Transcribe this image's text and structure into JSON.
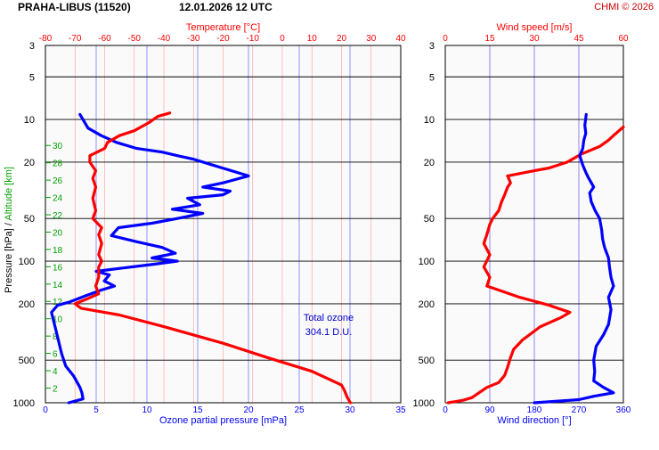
{
  "header": {
    "station_title": "PRAHA-LIBUS (11520)",
    "datetime": "12.01.2026 12 UTC",
    "credit": "CHMI © 2026"
  },
  "colors": {
    "ozone": "#0000ff",
    "temperature": "#ff0000",
    "wind_speed": "#ff0000",
    "wind_direction": "#0000ff",
    "altitude": "#00a000",
    "grid": "#000000",
    "plot_background": "#fafafa"
  },
  "annotation": {
    "line1": "Total ozone",
    "line2": "304.1 D.U."
  },
  "chart_data": [
    {
      "type": "line",
      "name": "ozone-temperature-profile",
      "title": "",
      "ylabel": "Pressure [hPa]  /  Altitude [km]",
      "y_scale": "log",
      "ylim": [
        1000,
        3
      ],
      "y_ticks": [
        3,
        5,
        10,
        20,
        50,
        100,
        200,
        500,
        1000
      ],
      "altitude_ticks": [
        "2",
        "4",
        "6",
        "8",
        "10",
        "12",
        "14",
        "16",
        "18",
        "20",
        "22",
        "24",
        "26",
        "28",
        "30"
      ],
      "x_axes": {
        "bottom": {
          "label": "Ozone partial pressure [mPa]",
          "range": [
            0,
            35
          ],
          "ticks": [
            0,
            5,
            10,
            15,
            20,
            25,
            30,
            35
          ]
        },
        "top": {
          "label": "Temperature [°C]",
          "range": [
            -80,
            40
          ],
          "ticks": [
            -80,
            -70,
            -60,
            -50,
            -40,
            -30,
            -20,
            -10,
            0,
            10,
            20,
            30,
            40
          ]
        }
      },
      "series": [
        {
          "axis": "bottom",
          "points": [
            [
              2.3,
              1000
            ],
            [
              3.7,
              940
            ],
            [
              3.6,
              850
            ],
            [
              3.4,
              780
            ],
            [
              2.8,
              650
            ],
            [
              2.0,
              550
            ],
            [
              1.6,
              450
            ],
            [
              1.0,
              300
            ],
            [
              0.6,
              230
            ],
            [
              1.2,
              205
            ],
            [
              2.3,
              195
            ],
            [
              4.0,
              175
            ],
            [
              5.5,
              160
            ],
            [
              6.8,
              150
            ],
            [
              5.8,
              138
            ],
            [
              6.3,
              125
            ],
            [
              5.0,
              118
            ],
            [
              7.5,
              112
            ],
            [
              10.8,
              105
            ],
            [
              13.0,
              100
            ],
            [
              10.5,
              95
            ],
            [
              12.8,
              88
            ],
            [
              11.5,
              80
            ],
            [
              9.0,
              73
            ],
            [
              6.5,
              66
            ],
            [
              7.2,
              58
            ],
            [
              10.5,
              54
            ],
            [
              13.0,
              50
            ],
            [
              15.5,
              46
            ],
            [
              12.5,
              43
            ],
            [
              15.2,
              40
            ],
            [
              14.0,
              36
            ],
            [
              17.5,
              34
            ],
            [
              18.2,
              32
            ],
            [
              15.5,
              30
            ],
            [
              17.5,
              28
            ],
            [
              20.0,
              25
            ],
            [
              16.5,
              21
            ],
            [
              14.5,
              19
            ],
            [
              13.0,
              18
            ],
            [
              11.5,
              17
            ],
            [
              9.0,
              16
            ],
            [
              7.0,
              14.5
            ],
            [
              5.5,
              13
            ],
            [
              4.2,
              11.5
            ],
            [
              3.8,
              10.3
            ],
            [
              3.4,
              9.2
            ]
          ]
        },
        {
          "axis": "top",
          "points": [
            [
              23,
              1000
            ],
            [
              22,
              920
            ],
            [
              21,
              820
            ],
            [
              20,
              750
            ],
            [
              10,
              600
            ],
            [
              -5,
              480
            ],
            [
              -20,
              380
            ],
            [
              -40,
              290
            ],
            [
              -55,
              240
            ],
            [
              -68,
              215
            ],
            [
              -70,
              200
            ],
            [
              -66,
              185
            ],
            [
              -62,
              170
            ],
            [
              -63,
              150
            ],
            [
              -62,
              130
            ],
            [
              -62,
              110
            ],
            [
              -61,
              100
            ],
            [
              -62,
              90
            ],
            [
              -61,
              75
            ],
            [
              -62,
              65
            ],
            [
              -61,
              58
            ],
            [
              -64,
              50
            ],
            [
              -63,
              44
            ],
            [
              -64,
              36
            ],
            [
              -63,
              30
            ],
            [
              -64,
              26
            ],
            [
              -63,
              23
            ],
            [
              -65,
              20
            ],
            [
              -65,
              18
            ],
            [
              -60,
              16
            ],
            [
              -59,
              14.5
            ],
            [
              -55,
              13
            ],
            [
              -50,
              12
            ],
            [
              -45,
              10.5
            ],
            [
              -42,
              9.5
            ],
            [
              -38,
              9
            ]
          ]
        }
      ]
    },
    {
      "type": "line",
      "name": "wind-profile",
      "title": "",
      "y_scale": "log",
      "ylim": [
        1000,
        3
      ],
      "y_ticks": [
        3,
        5,
        10,
        20,
        50,
        100,
        200,
        500,
        1000
      ],
      "x_axes": {
        "bottom": {
          "label": "Wind direction [°]",
          "range": [
            0,
            360
          ],
          "ticks": [
            0,
            90,
            180,
            270,
            360
          ]
        },
        "top": {
          "label": "Wind speed [m/s]",
          "range": [
            0,
            60
          ],
          "ticks": [
            0,
            15,
            30,
            45,
            60
          ]
        }
      },
      "series": [
        {
          "axis": "top",
          "points": [
            [
              1,
              1000
            ],
            [
              6,
              960
            ],
            [
              9,
              920
            ],
            [
              11,
              860
            ],
            [
              14,
              780
            ],
            [
              18,
              720
            ],
            [
              20,
              640
            ],
            [
              21,
              560
            ],
            [
              22,
              480
            ],
            [
              23,
              420
            ],
            [
              26,
              360
            ],
            [
              32,
              290
            ],
            [
              39,
              250
            ],
            [
              42,
              230
            ],
            [
              35,
              205
            ],
            [
              25,
              180
            ],
            [
              18,
              160
            ],
            [
              14,
              150
            ],
            [
              15,
              130
            ],
            [
              13,
              110
            ],
            [
              15,
              90
            ],
            [
              13,
              75
            ],
            [
              14,
              65
            ],
            [
              15,
              55
            ],
            [
              16,
              50
            ],
            [
              18,
              44
            ],
            [
              19,
              38
            ],
            [
              20,
              34
            ],
            [
              21,
              30
            ],
            [
              22,
              28
            ],
            [
              21,
              25
            ],
            [
              30,
              23
            ],
            [
              35,
              22
            ],
            [
              41,
              20
            ],
            [
              46,
              17.5
            ],
            [
              52,
              15.5
            ],
            [
              55,
              14
            ],
            [
              57,
              12.8
            ],
            [
              60,
              11.3
            ]
          ]
        },
        {
          "axis": "bottom",
          "points": [
            [
              180,
              1000
            ],
            [
              270,
              950
            ],
            [
              300,
              900
            ],
            [
              340,
              850
            ],
            [
              320,
              780
            ],
            [
              300,
              700
            ],
            [
              302,
              600
            ],
            [
              300,
              500
            ],
            [
              305,
              400
            ],
            [
              320,
              330
            ],
            [
              330,
              280
            ],
            [
              335,
              220
            ],
            [
              330,
              180
            ],
            [
              340,
              150
            ],
            [
              335,
              130
            ],
            [
              332,
              110
            ],
            [
              330,
              95
            ],
            [
              322,
              80
            ],
            [
              318,
              70
            ],
            [
              316,
              60
            ],
            [
              312,
              50
            ],
            [
              303,
              44
            ],
            [
              295,
              38
            ],
            [
              292,
              33
            ],
            [
              300,
              30
            ],
            [
              290,
              26
            ],
            [
              285,
              24
            ],
            [
              278,
              21
            ],
            [
              272,
              18
            ],
            [
              278,
              16
            ],
            [
              280,
              14
            ],
            [
              284,
              12.5
            ],
            [
              282,
              11
            ],
            [
              285,
              9.2
            ]
          ]
        }
      ]
    }
  ]
}
